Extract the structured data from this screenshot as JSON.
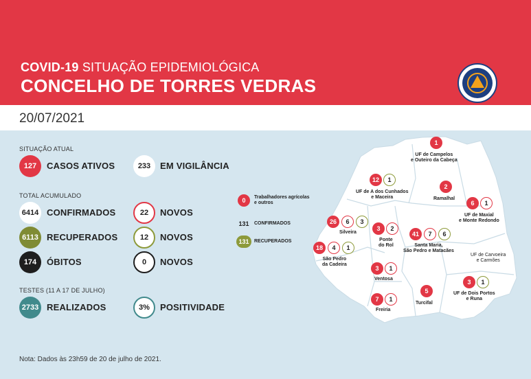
{
  "header": {
    "title_bold": "COVID-19",
    "title_rest": " SITUAÇÃO EPIDEMIOLÓGICA",
    "subtitle": "CONCELHO DE TORRES VEDRAS",
    "logo_text": "PROTEÇÃO CIVIL TORRES VEDRAS"
  },
  "date": "20/07/2021",
  "situacao": {
    "heading": "SITUAÇÃO ATUAL",
    "ativos_value": "127",
    "ativos_label": "CASOS ATIVOS",
    "vigilancia_value": "233",
    "vigilancia_label": "EM VIGILÂNCIA"
  },
  "acumulado": {
    "heading": "TOTAL ACUMULADO",
    "confirmados_value": "6414",
    "confirmados_label": "CONFIRMADOS",
    "confirmados_novos": "22",
    "recuperados_value": "6113",
    "recuperados_label": "RECUPERADOS",
    "recuperados_novos": "12",
    "obitos_value": "174",
    "obitos_label": "ÓBITOS",
    "obitos_novos": "0",
    "novos_label": "NOVOS"
  },
  "testes": {
    "heading": "TESTES (11 A 17 DE JULHO)",
    "realizados_value": "2733",
    "realizados_label": "REALIZADOS",
    "positividade_value": "3%",
    "positividade_label": "POSITIVIDADE"
  },
  "legend": {
    "trabalhadores_value": "0",
    "trabalhadores_label_1": "Trabalhadores agrícolas",
    "trabalhadores_label_2": "e outros",
    "confirmados_value": "131",
    "confirmados_label": "CONFIRMADOS",
    "recuperados_value": "131",
    "recuperados_label": "RECUPERADOS"
  },
  "parishes": {
    "campelos": {
      "l1": "UF de Campelos",
      "l2": "e Outeiro da Cabeça",
      "a": "1"
    },
    "cunhados": {
      "l1": "UF de A dos Cunhados",
      "l2": "e Maceira",
      "a": "12",
      "b": "1"
    },
    "ramalhal": {
      "l1": "Ramalhal",
      "a": "2"
    },
    "maxial": {
      "l1": "UF de Maxial",
      "l2": "e Monte Redondo",
      "a": "6",
      "b": "1"
    },
    "silveira": {
      "l1": "Silveira",
      "a": "26",
      "b": "6",
      "c": "3"
    },
    "ponte_rol": {
      "l1": "Ponte",
      "l2": "do Rol",
      "a": "3",
      "b": "2"
    },
    "santa_maria": {
      "l1": "Santa Maria,",
      "l2": "São Pedro e Matacães",
      "a": "41",
      "b": "7",
      "c": "6"
    },
    "carvoeira": {
      "l1": "UF de Carvoeira",
      "l2": "e Carmões"
    },
    "sao_pedro_cadeira": {
      "l1": "São Pedro",
      "l2": "da Cadeira",
      "a": "18",
      "b": "4",
      "c": "1"
    },
    "ventosa": {
      "l1": "Ventosa",
      "a": "3",
      "b": "1"
    },
    "dois_portos": {
      "l1": "UF de Dois Portos",
      "l2": "e Runa",
      "a": "3",
      "b": "1"
    },
    "turcifal": {
      "l1": "Turcifal",
      "a": "5"
    },
    "freiria": {
      "l1": "Freiria",
      "a": "7",
      "b": "1"
    }
  },
  "note": "Nota: Dados às 23h59 de 20 de julho de 2021.",
  "colors": {
    "red": "#e23745",
    "olive": "#7f8b34",
    "teal": "#418a8c",
    "black": "#1e1e1e",
    "map": "#ffffff",
    "background": "#d5e6ef"
  }
}
